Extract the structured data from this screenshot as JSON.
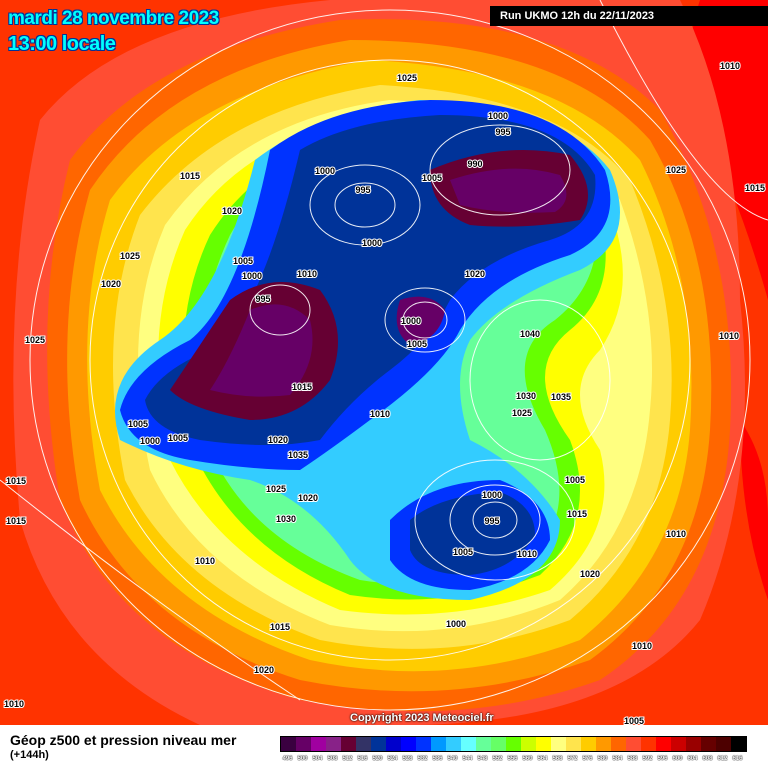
{
  "header": {
    "date": "mardi 28 novembre 2023",
    "time": "13:00 locale",
    "run": "Run UKMO 12h du 22/11/2023"
  },
  "copyright": "Copyright 2023 Meteociel.fr",
  "footer": {
    "title": "Géop z500 et pression niveau mer",
    "subtitle": "(+144h)"
  },
  "legend": {
    "unit_values": [
      "496",
      "500",
      "504",
      "508",
      "512",
      "516",
      "520",
      "524",
      "528",
      "532",
      "536",
      "540",
      "544",
      "548",
      "552",
      "556",
      "560",
      "564",
      "568",
      "572",
      "576",
      "580",
      "584",
      "588",
      "592",
      "596",
      "600",
      "604",
      "608",
      "612",
      "616"
    ],
    "colors": [
      "#3a0040",
      "#660066",
      "#a000a0",
      "#882288",
      "#660033",
      "#333366",
      "#003399",
      "#0000cc",
      "#0000ff",
      "#0033ff",
      "#0099ff",
      "#33ccff",
      "#66ffff",
      "#66ff99",
      "#66ff66",
      "#66ff00",
      "#ccff00",
      "#ffff00",
      "#ffff80",
      "#ffe44d",
      "#ffcc00",
      "#ff9900",
      "#ff6600",
      "#ff4d33",
      "#ff3300",
      "#ff0000",
      "#cc0000",
      "#990000",
      "#660000",
      "#4d0000",
      "#000000"
    ]
  },
  "isobar_labels": [
    "1025",
    "1010",
    "1000",
    "995",
    "990",
    "1000",
    "995",
    "1005",
    "1015",
    "1025",
    "1015",
    "1020",
    "1000",
    "1025",
    "1005",
    "1000",
    "1010",
    "1020",
    "1020",
    "995",
    "1000",
    "1040",
    "1025",
    "1005",
    "1010",
    "1015",
    "1030",
    "1035",
    "1010",
    "1025",
    "1005",
    "1005",
    "1000",
    "1020",
    "1035",
    "1015",
    "1025",
    "1020",
    "1000",
    "1005",
    "995",
    "1015",
    "1030",
    "1015",
    "1010",
    "1005",
    "1010",
    "1010",
    "1020",
    "1000",
    "1015",
    "1010",
    "1020",
    "1010",
    "1005"
  ]
}
